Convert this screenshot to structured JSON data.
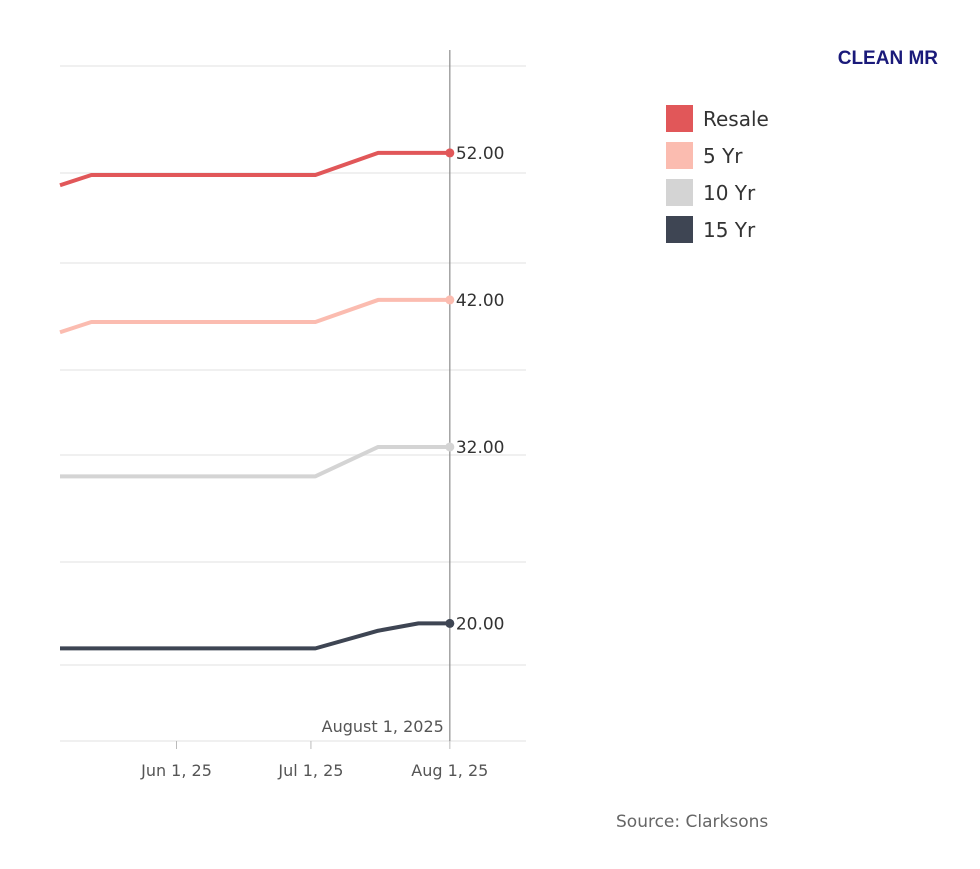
{
  "title": "CLEAN MR",
  "source": "Source: Clarksons",
  "reference_label": "August 1, 2025",
  "chart_data": {
    "type": "line",
    "x_tick_labels": [
      "Jun 1, 25",
      "Jul 1, 25",
      "Aug 1, 25"
    ],
    "x_tick_dates": [
      "2025-06-01",
      "2025-07-01",
      "2025-08-01"
    ],
    "xlim": [
      "2025-05-06",
      "2025-08-18"
    ],
    "ylim": [
      12,
      59
    ],
    "grid": true,
    "legend_position": "top-right",
    "reference_date": "2025-08-01",
    "x": [
      "2025-05-06",
      "2025-05-13",
      "2025-07-02",
      "2025-07-16",
      "2025-07-25",
      "2025-08-01"
    ],
    "series": [
      {
        "name": "Resale",
        "color": "#e15759",
        "values": [
          49.8,
          50.5,
          50.5,
          52.0,
          52.0,
          52.0
        ],
        "end_label": "52.00"
      },
      {
        "name": "5 Yr",
        "color": "#fbbcb0",
        "values": [
          39.8,
          40.5,
          40.5,
          42.0,
          42.0,
          42.0
        ],
        "end_label": "42.00"
      },
      {
        "name": "10 Yr",
        "color": "#d4d4d4",
        "values": [
          30.0,
          30.0,
          30.0,
          32.0,
          32.0,
          32.0
        ],
        "end_label": "32.00"
      },
      {
        "name": "15 Yr",
        "color": "#3e4553",
        "values": [
          18.3,
          18.3,
          18.3,
          19.5,
          20.0,
          20.0
        ],
        "end_label": "20.00"
      }
    ]
  }
}
